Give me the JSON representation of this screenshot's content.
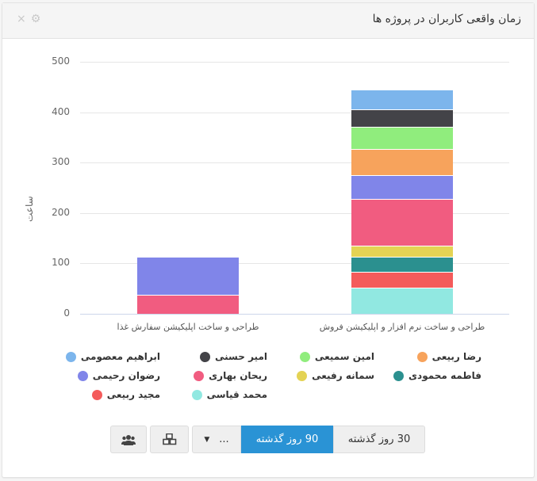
{
  "panel": {
    "title": "زمان واقعی کاربران در پروژه ها",
    "tools": {
      "settings_icon": "⚙",
      "close_icon": "×"
    }
  },
  "chart_data": {
    "type": "bar",
    "stacked": true,
    "title": "",
    "xlabel": "",
    "ylabel": "ساعت",
    "ylim": [
      0,
      500
    ],
    "yticks": [
      "0",
      "100",
      "200",
      "300",
      "400",
      "500"
    ],
    "grid": true,
    "legend_position": "bottom",
    "categories": [
      "طراحی و ساخت اپلیکیشن سفارش غذا",
      "طراحی و ساخت نرم افزار و اپلیکیشن فروش"
    ],
    "series": [
      {
        "name": "ابراهیم معصومی",
        "color": "#7cb5ec",
        "values": [
          0,
          39
        ]
      },
      {
        "name": "امیر حسنی",
        "color": "#434348",
        "values": [
          0,
          35
        ]
      },
      {
        "name": "امین سمیعی",
        "color": "#90ed7d",
        "values": [
          0,
          44
        ]
      },
      {
        "name": "رضا ربیعی",
        "color": "#f7a35c",
        "values": [
          0,
          52
        ]
      },
      {
        "name": "رضوان رحیمی",
        "color": "#8085e9",
        "values": [
          75,
          47
        ]
      },
      {
        "name": "ریحان بهاری",
        "color": "#f15c80",
        "values": [
          38,
          93
        ]
      },
      {
        "name": "سمانه رفیعی",
        "color": "#e4d354",
        "values": [
          0,
          22
        ]
      },
      {
        "name": "فاطمه محمودی",
        "color": "#2b908f",
        "values": [
          0,
          30
        ]
      },
      {
        "name": "مجید ربیعی",
        "color": "#f45b5b",
        "values": [
          0,
          31
        ]
      },
      {
        "name": "محمد قیاسی",
        "color": "#91e8e1",
        "values": [
          0,
          52
        ]
      }
    ]
  },
  "legend": {
    "rows": [
      [
        "رضا ربیعی",
        "امین سمیعی",
        "امیر حسنی",
        "ابراهیم معصومی"
      ],
      [
        "فاطمه محمودی",
        "سمانه رفیعی",
        "ریحان بهاری",
        "رضوان رحیمی"
      ],
      [
        "",
        "",
        "محمد قیاسی",
        "مجید ربیعی"
      ]
    ]
  },
  "toolbar": {
    "btn_30": "30 روز گذشته",
    "btn_90": "90 روز گذشته",
    "btn_more": "...",
    "active": "90 روز گذشته",
    "projects_icon": "cubes-icon",
    "users_icon": "users-icon"
  }
}
